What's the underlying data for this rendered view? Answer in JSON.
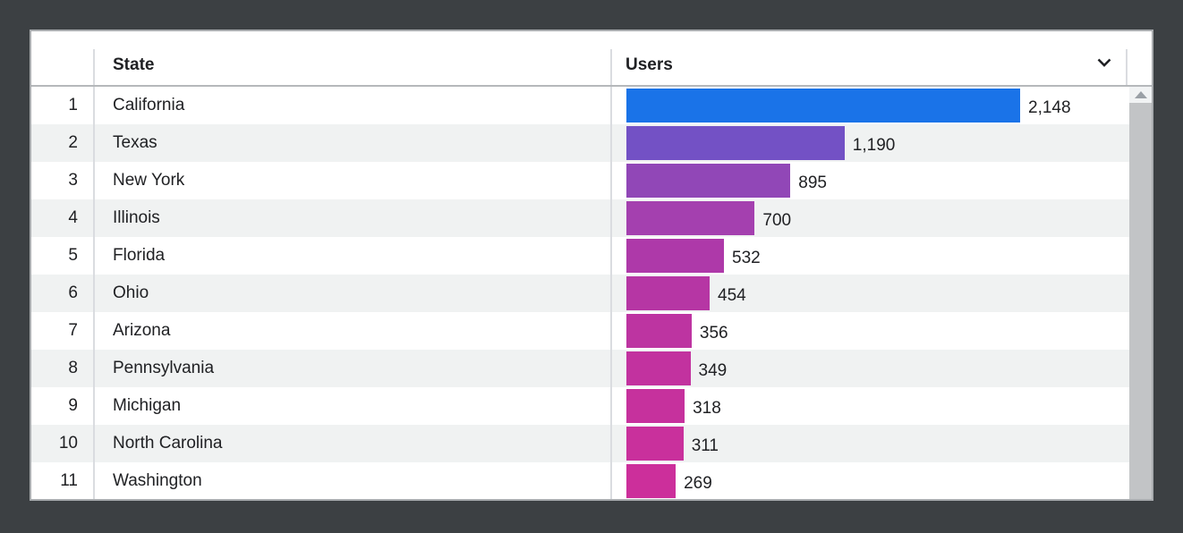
{
  "frame": {
    "background": "#3c4043"
  },
  "table": {
    "columns": {
      "rank": "",
      "state": "State",
      "users": "Users"
    },
    "sort_icon": "chevron-down",
    "max_users": 2148,
    "rows": [
      {
        "rank": "1",
        "state": "California",
        "users": 2148,
        "users_label": "2,148",
        "bar_color": "#1a73e8"
      },
      {
        "rank": "2",
        "state": "Texas",
        "users": 1190,
        "users_label": "1,190",
        "bar_color": "#7351c5"
      },
      {
        "rank": "3",
        "state": "New York",
        "users": 895,
        "users_label": "895",
        "bar_color": "#9147b7"
      },
      {
        "rank": "4",
        "state": "Illinois",
        "users": 700,
        "users_label": "700",
        "bar_color": "#a440af"
      },
      {
        "rank": "5",
        "state": "Florida",
        "users": 532,
        "users_label": "532",
        "bar_color": "#ae39a9"
      },
      {
        "rank": "6",
        "state": "Ohio",
        "users": 454,
        "users_label": "454",
        "bar_color": "#b636a4"
      },
      {
        "rank": "7",
        "state": "Arizona",
        "users": 356,
        "users_label": "356",
        "bar_color": "#bd34a1"
      },
      {
        "rank": "8",
        "state": "Pennsylvania",
        "users": 349,
        "users_label": "349",
        "bar_color": "#c2329f"
      },
      {
        "rank": "9",
        "state": "Michigan",
        "users": 318,
        "users_label": "318",
        "bar_color": "#c6319d"
      },
      {
        "rank": "10",
        "state": "North Carolina",
        "users": 311,
        "users_label": "311",
        "bar_color": "#c9309c"
      },
      {
        "rank": "11",
        "state": "Washington",
        "users": 269,
        "users_label": "269",
        "bar_color": "#cc2f9b"
      }
    ]
  },
  "scrollbar": {
    "up_arrow_icon": "triangle-up",
    "track_color": "#f1f3f4",
    "thumb_color": "#c2c4c6",
    "arrow_color": "#9aa0a6"
  },
  "palette": {
    "frame_background": "#3c4043",
    "card_border": "#a9acaf",
    "row_alt_background": "#f0f2f2",
    "column_divider": "#dadce0",
    "header_border": "#b5b8bb",
    "text": "#202124"
  },
  "chart_data": {
    "type": "bar",
    "orientation": "horizontal",
    "title": "",
    "xlabel": "Users",
    "ylabel": "State",
    "categories": [
      "California",
      "Texas",
      "New York",
      "Illinois",
      "Florida",
      "Ohio",
      "Arizona",
      "Pennsylvania",
      "Michigan",
      "North Carolina",
      "Washington"
    ],
    "values": [
      2148,
      1190,
      895,
      700,
      532,
      454,
      356,
      349,
      318,
      311,
      269
    ],
    "value_labels": [
      "2,148",
      "1,190",
      "895",
      "700",
      "532",
      "454",
      "356",
      "349",
      "318",
      "311",
      "269"
    ],
    "bar_colors": [
      "#1a73e8",
      "#7351c5",
      "#9147b7",
      "#a440af",
      "#ae39a9",
      "#b636a4",
      "#bd34a1",
      "#c2329f",
      "#c6319d",
      "#c9309c",
      "#cc2f9b"
    ],
    "xlim": [
      0,
      2148
    ],
    "grid": false,
    "legend": false
  }
}
